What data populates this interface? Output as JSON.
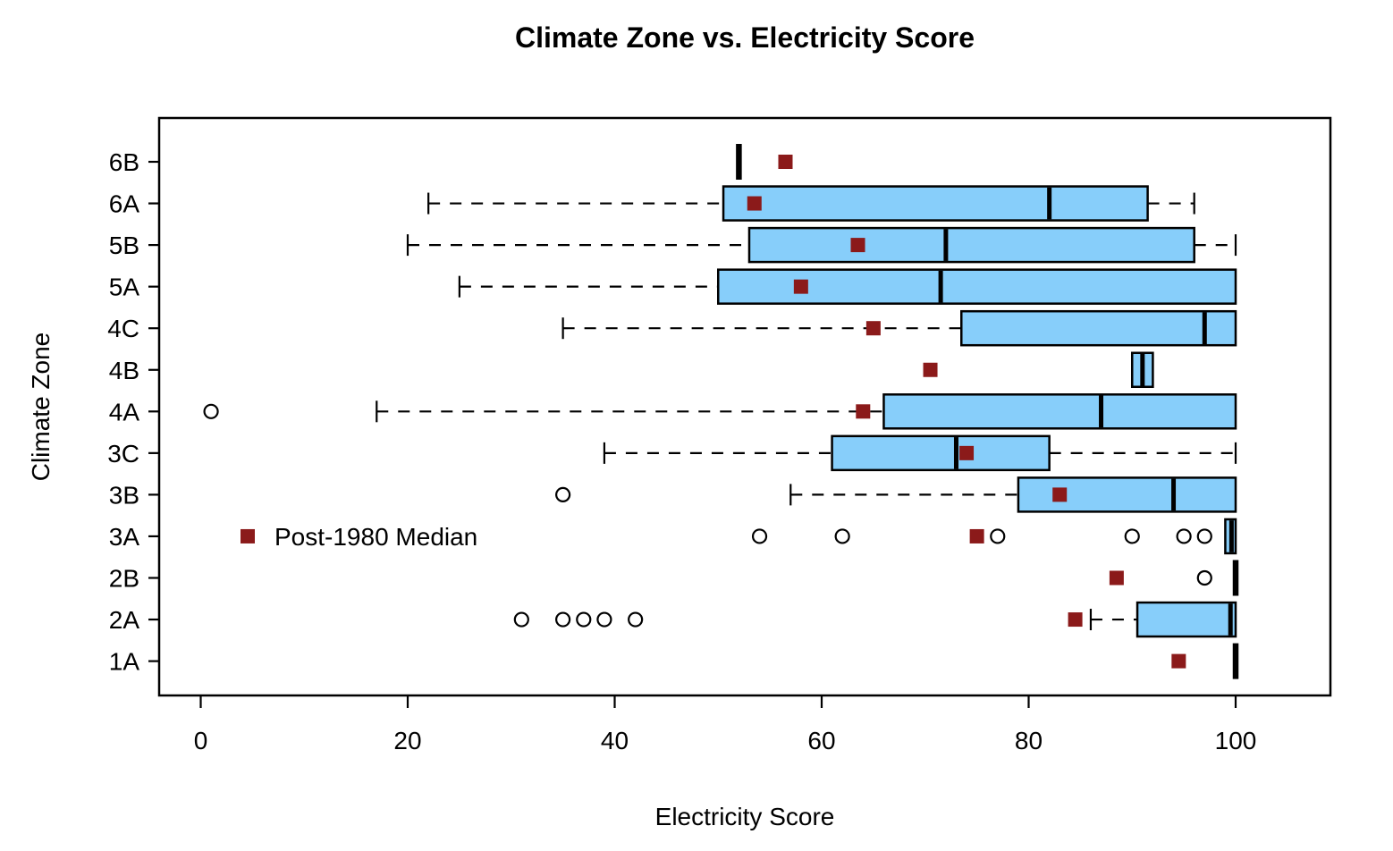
{
  "chart_data": {
    "type": "boxplot",
    "orientation": "horizontal",
    "title": "Climate Zone vs. Electricity Score",
    "xlabel": "Electricity Score",
    "ylabel": "Climate Zone",
    "xticks": [
      0,
      20,
      40,
      60,
      80,
      100
    ],
    "xlim": [
      -4,
      109
    ],
    "grid": false,
    "legend": {
      "label": "Post-1980 Median",
      "position": "inside-middle-left"
    },
    "colors": {
      "box_fill": "#87CEFA",
      "box_stroke": "#000000",
      "median_line": "#000000",
      "whisker": "#000000",
      "outlier_stroke": "#000000",
      "post1980_marker": "#8B1A1A"
    },
    "zones_top_to_bottom": [
      {
        "zone": "6B",
        "degenerate": true,
        "median": 52,
        "post1980_median": 56.5,
        "outliers": []
      },
      {
        "zone": "6A",
        "whisker_low": 22,
        "q1": 50.5,
        "median": 82,
        "q3": 91.5,
        "whisker_high": 96,
        "post1980_median": 53.5,
        "outliers": []
      },
      {
        "zone": "5B",
        "whisker_low": 20,
        "q1": 53,
        "median": 72,
        "q3": 96,
        "whisker_high": 100,
        "post1980_median": 63.5,
        "outliers": []
      },
      {
        "zone": "5A",
        "whisker_low": 25,
        "q1": 50,
        "median": 71.5,
        "q3": 100,
        "post1980_median": 58,
        "outliers": []
      },
      {
        "zone": "4C",
        "whisker_low": 35,
        "q1": 73.5,
        "median": 97,
        "q3": 100,
        "post1980_median": 65,
        "outliers": []
      },
      {
        "zone": "4B",
        "q1": 90,
        "median": 91,
        "q3": 92,
        "post1980_median": 70.5,
        "outliers": []
      },
      {
        "zone": "4A",
        "whisker_low": 17,
        "q1": 66,
        "median": 87,
        "q3": 100,
        "post1980_median": 64,
        "outliers": [
          1
        ]
      },
      {
        "zone": "3C",
        "whisker_low": 39,
        "q1": 61,
        "median": 73,
        "q3": 82,
        "whisker_high": 100,
        "post1980_median": 74,
        "outliers": []
      },
      {
        "zone": "3B",
        "whisker_low": 57,
        "q1": 79,
        "median": 94,
        "q3": 100,
        "post1980_median": 83,
        "outliers": [
          35
        ]
      },
      {
        "zone": "3A",
        "q1": 99,
        "median": 99.6,
        "q3": 100,
        "post1980_median": 75,
        "outliers": [
          54,
          62,
          77,
          90,
          95,
          97
        ]
      },
      {
        "zone": "2B",
        "degenerate": true,
        "median": 100,
        "post1980_median": 88.5,
        "outliers": [
          97
        ]
      },
      {
        "zone": "2A",
        "whisker_low": 86,
        "q1": 90.5,
        "median": 99.5,
        "q3": 100,
        "post1980_median": 84.5,
        "outliers": [
          31,
          35,
          37,
          39,
          42
        ]
      },
      {
        "zone": "1A",
        "degenerate": true,
        "median": 100,
        "post1980_median": 94.5,
        "outliers": []
      }
    ]
  }
}
